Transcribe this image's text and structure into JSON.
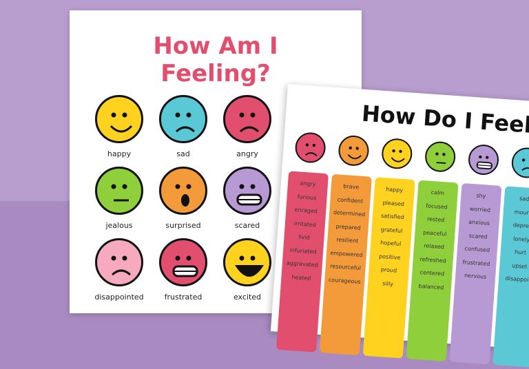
{
  "sheet1": {
    "title_line1": "How Am I",
    "title_line2": "Feeling?",
    "faces": [
      {
        "label": "happy",
        "color": "#ffd21f"
      },
      {
        "label": "sad",
        "color": "#5bc8d6"
      },
      {
        "label": "angry",
        "color": "#e24f6e"
      },
      {
        "label": "jealous",
        "color": "#8fcf3c"
      },
      {
        "label": "surprised",
        "color": "#f39a3a"
      },
      {
        "label": "scared",
        "color": "#b79ad3"
      },
      {
        "label": "disappointed",
        "color": "#f7a9bf"
      },
      {
        "label": "frustrated",
        "color": "#e24f6e"
      },
      {
        "label": "excited",
        "color": "#ffd21f"
      }
    ]
  },
  "sheet2": {
    "title": "How Do I Feel?",
    "columns": [
      {
        "color": "#e24f6e",
        "words": [
          "angry",
          "furious",
          "enraged",
          "irritated",
          "livid",
          "infuriated",
          "aggravated",
          "heated"
        ]
      },
      {
        "color": "#f39a3a",
        "words": [
          "brave",
          "confident",
          "determined",
          "prepared",
          "resilient",
          "empowered",
          "resourceful",
          "courageous"
        ]
      },
      {
        "color": "#ffd21f",
        "words": [
          "happy",
          "pleased",
          "satisfied",
          "grateful",
          "hopeful",
          "positive",
          "proud",
          "silly"
        ]
      },
      {
        "color": "#8fcf3c",
        "words": [
          "calm",
          "focused",
          "rested",
          "peaceful",
          "relaxed",
          "refreshed",
          "centered",
          "balanced"
        ]
      },
      {
        "color": "#b79ad3",
        "words": [
          "shy",
          "worried",
          "anxious",
          "scared",
          "confused",
          "frustrated",
          "nervous"
        ]
      },
      {
        "color": "#5bc8d6",
        "words": [
          "sad",
          "mourn",
          "depres",
          "lonely",
          "hurt",
          "upset",
          "disappoin"
        ]
      }
    ]
  }
}
